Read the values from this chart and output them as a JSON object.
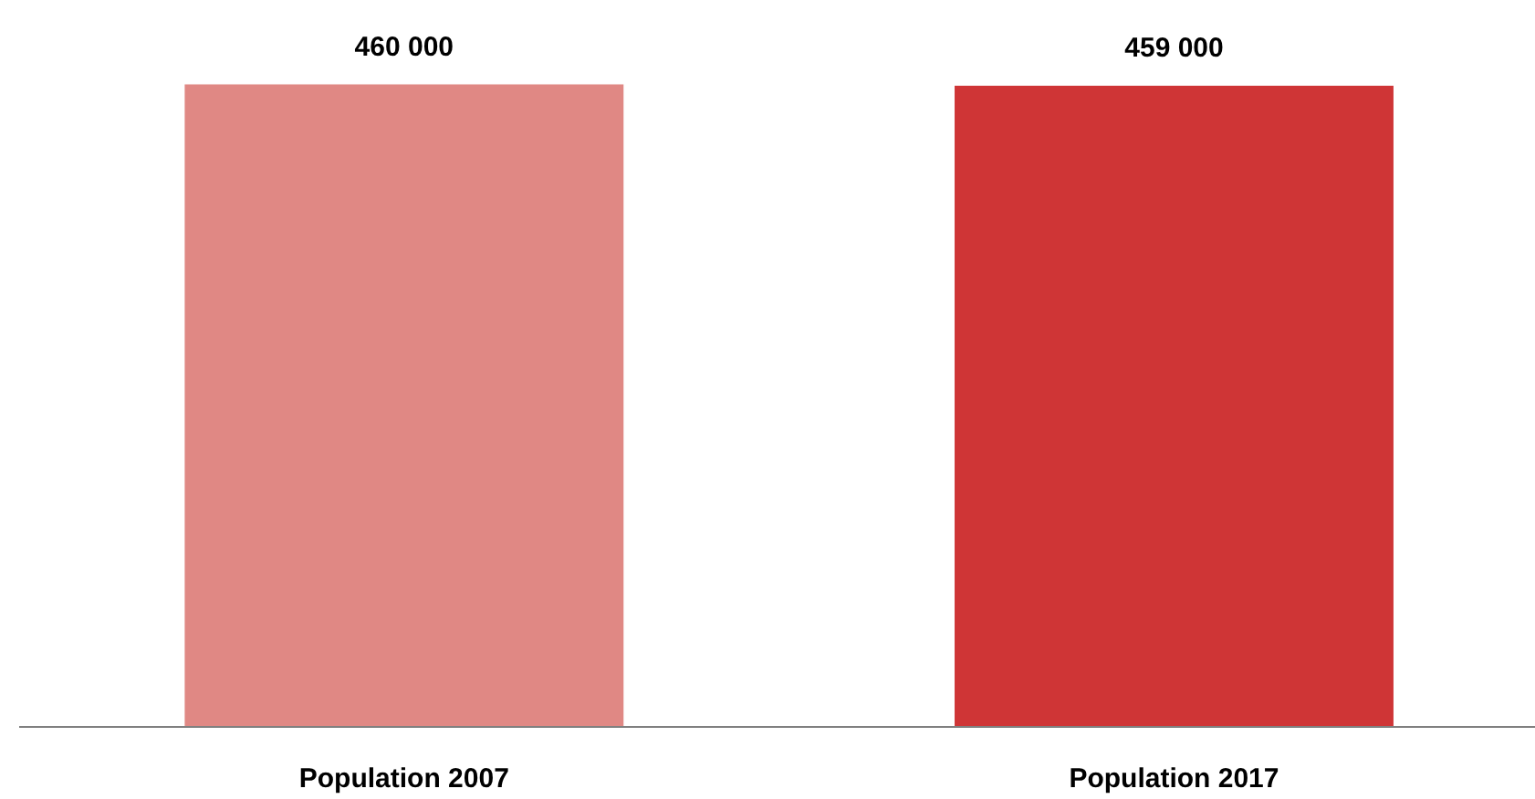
{
  "chart_data": {
    "type": "bar",
    "categories": [
      "Population 2007",
      "Population 2017"
    ],
    "values": [
      460000,
      459000
    ],
    "colors": [
      "#e08884",
      "#cf3536"
    ],
    "value_labels": [
      "460 000",
      "459 000"
    ],
    "tick_labels": "x"
  }
}
